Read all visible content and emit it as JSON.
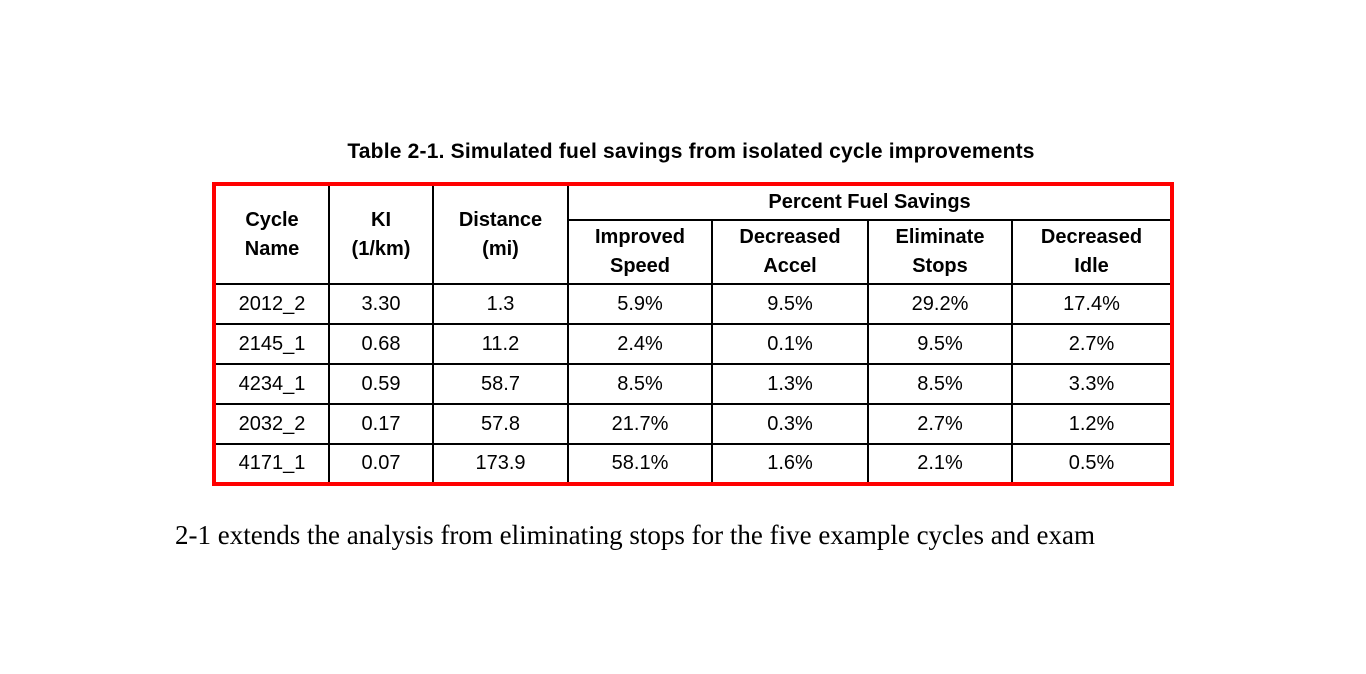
{
  "title": "Table 2-1. Simulated fuel savings from isolated cycle improvements",
  "table": {
    "border_color": "#ff0000",
    "header": {
      "cycle_name": "Cycle\nName",
      "ki": "KI\n(1/km)",
      "distance": "Distance\n(mi)",
      "group": "Percent Fuel Savings",
      "sub": [
        "Improved\nSpeed",
        "Decreased\nAccel",
        "Eliminate\nStops",
        "Decreased\nIdle"
      ]
    },
    "rows": [
      [
        "2012_2",
        "3.30",
        "1.3",
        "5.9%",
        "9.5%",
        "29.2%",
        "17.4%"
      ],
      [
        "2145_1",
        "0.68",
        "11.2",
        "2.4%",
        "0.1%",
        "9.5%",
        "2.7%"
      ],
      [
        "4234_1",
        "0.59",
        "58.7",
        "8.5%",
        "1.3%",
        "8.5%",
        "3.3%"
      ],
      [
        "2032_2",
        "0.17",
        "57.8",
        "21.7%",
        "0.3%",
        "2.7%",
        "1.2%"
      ],
      [
        "4171_1",
        "0.07",
        "173.9",
        "58.1%",
        "1.6%",
        "2.1%",
        "0.5%"
      ]
    ]
  },
  "body_text": "2-1 extends the analysis from eliminating stops for the five example cycles and exam"
}
